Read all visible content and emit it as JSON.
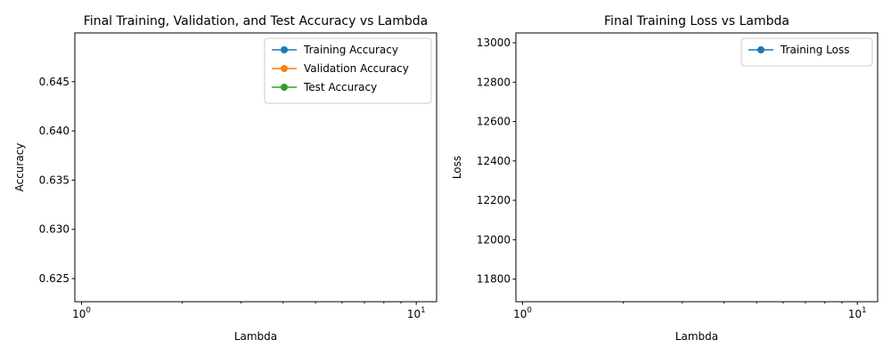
{
  "chart_data": [
    {
      "type": "line",
      "title": "Final Training, Validation, and Test Accuracy vs Lambda",
      "xlabel": "Lambda",
      "ylabel": "Accuracy",
      "xscale": "log",
      "xlim": [
        0.955,
        11.5
      ],
      "ylim": [
        0.62265,
        0.64995
      ],
      "x_ticks": [
        {
          "value": 1,
          "base": "10",
          "exp": "0"
        },
        {
          "value": 10,
          "base": "10",
          "exp": "1"
        }
      ],
      "y_ticks": [
        {
          "value": 0.625,
          "label": "0.625"
        },
        {
          "value": 0.63,
          "label": "0.630"
        },
        {
          "value": 0.635,
          "label": "0.635"
        },
        {
          "value": 0.64,
          "label": "0.640"
        },
        {
          "value": 0.645,
          "label": "0.645"
        }
      ],
      "series": [
        {
          "name": "Training Accuracy",
          "color": "#1f77b4",
          "x": [],
          "y": []
        },
        {
          "name": "Validation Accuracy",
          "color": "#ff7f0e",
          "x": [],
          "y": []
        },
        {
          "name": "Test Accuracy",
          "color": "#2ca02c",
          "x": [],
          "y": []
        }
      ],
      "legend": "top-right",
      "grid": false
    },
    {
      "type": "line",
      "title": "Final Training Loss vs Lambda",
      "xlabel": "Lambda",
      "ylabel": "Loss",
      "xscale": "log",
      "xlim": [
        0.955,
        11.5
      ],
      "ylim": [
        11685,
        13050
      ],
      "x_ticks": [
        {
          "value": 1,
          "base": "10",
          "exp": "0"
        },
        {
          "value": 10,
          "base": "10",
          "exp": "1"
        }
      ],
      "y_ticks": [
        {
          "value": 11800,
          "label": "11800"
        },
        {
          "value": 12000,
          "label": "12000"
        },
        {
          "value": 12200,
          "label": "12200"
        },
        {
          "value": 12400,
          "label": "12400"
        },
        {
          "value": 12600,
          "label": "12600"
        },
        {
          "value": 12800,
          "label": "12800"
        },
        {
          "value": 13000,
          "label": "13000"
        }
      ],
      "series": [
        {
          "name": "Training Loss",
          "color": "#1f77b4",
          "x": [],
          "y": []
        }
      ],
      "legend": "top-right",
      "grid": false
    }
  ]
}
